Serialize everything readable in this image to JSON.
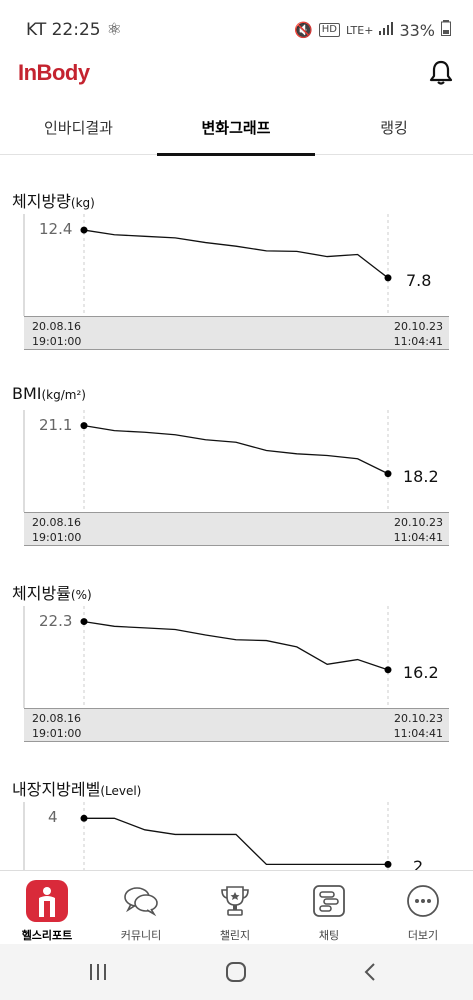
{
  "status_bar": {
    "carrier_time": "KT 22:25",
    "network": "LTE+",
    "hd": "HD",
    "battery": "33%"
  },
  "app": {
    "logo": "InBody"
  },
  "tabs": [
    {
      "label": "인바디결과",
      "active": false
    },
    {
      "label": "변화그래프",
      "active": true
    },
    {
      "label": "랭킹",
      "active": false
    }
  ],
  "charts": [
    {
      "title": "체지방량",
      "unit": "(kg)",
      "start_label": "12.4",
      "end_label": "7.8",
      "start_date": "20.08.16",
      "start_time": "19:01:00",
      "end_date": "20.10.23",
      "end_time": "11:04:41",
      "ymin": 7.5,
      "ymax": 12.6,
      "series": [
        12.4,
        11.95,
        11.8,
        11.65,
        11.2,
        10.85,
        10.4,
        10.35,
        9.85,
        10.05,
        7.8
      ]
    },
    {
      "title": "BMI",
      "unit": "(kg/m²)",
      "start_label": "21.1",
      "end_label": "18.2",
      "start_date": "20.08.16",
      "start_time": "19:01:00",
      "end_date": "20.10.23",
      "end_time": "11:04:41",
      "ymin": 18.0,
      "ymax": 21.2,
      "series": [
        21.1,
        20.8,
        20.7,
        20.55,
        20.25,
        20.1,
        19.6,
        19.4,
        19.3,
        19.1,
        18.2
      ]
    },
    {
      "title": "체지방률",
      "unit": "(%)",
      "start_label": "22.3",
      "end_label": "16.2",
      "start_date": "20.08.16",
      "start_time": "19:01:00",
      "end_date": "20.10.23",
      "end_time": "11:04:41",
      "ymin": 15.8,
      "ymax": 22.5,
      "series": [
        22.3,
        21.7,
        21.5,
        21.3,
        20.6,
        20.0,
        19.9,
        19.1,
        16.9,
        17.5,
        16.2
      ]
    },
    {
      "title": "내장지방레벨",
      "unit": "(Level)",
      "start_label": "4",
      "end_label": "2",
      "start_date": "",
      "start_time": "",
      "end_date": "",
      "end_time": "",
      "ymin": 1.8,
      "ymax": 4.1,
      "series": [
        4,
        4,
        3.5,
        3.3,
        3.3,
        3.3,
        2,
        2,
        2,
        2,
        2
      ]
    }
  ],
  "bottom_nav": [
    {
      "label": "헬스리포트",
      "icon": "health-report-icon",
      "active": true
    },
    {
      "label": "커뮤니티",
      "icon": "chat-bubbles-icon",
      "active": false
    },
    {
      "label": "챌린지",
      "icon": "trophy-icon",
      "active": false
    },
    {
      "label": "채팅",
      "icon": "chat-list-icon",
      "active": false
    },
    {
      "label": "더보기",
      "icon": "more-dots-icon",
      "active": false
    }
  ],
  "colors": {
    "brand": "#c4232f",
    "line": "#111111",
    "guide": "#cccccc"
  }
}
